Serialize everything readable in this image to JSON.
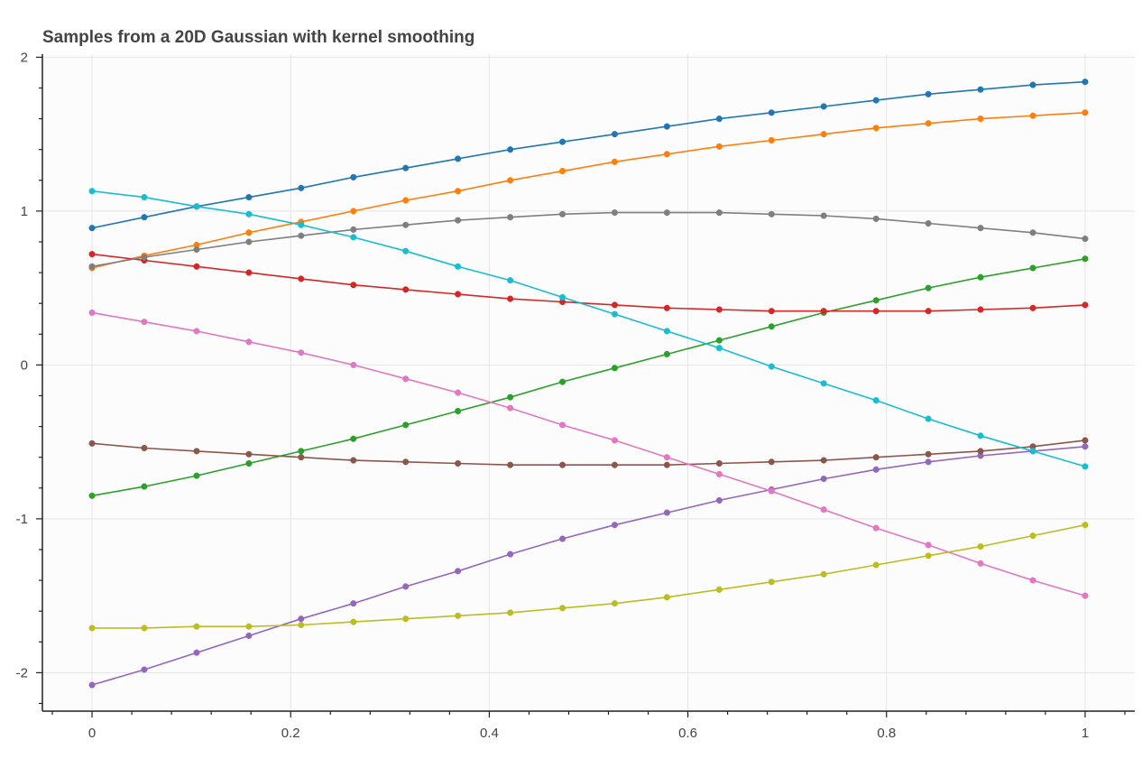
{
  "chart_data": {
    "type": "line",
    "title": "Samples from a 20D Gaussian with kernel smoothing",
    "xlabel": "",
    "ylabel": "",
    "xlim": [
      -0.05,
      1.05
    ],
    "ylim": [
      -2.25,
      2.02
    ],
    "xticks": [
      0,
      0.2,
      0.4,
      0.6,
      0.8,
      1
    ],
    "xtick_labels": [
      "0",
      "0.2",
      "0.4",
      "0.6",
      "0.8",
      "1"
    ],
    "yticks": [
      -2,
      -1,
      0,
      1,
      2
    ],
    "ytick_labels": [
      "-2",
      "-1",
      "0",
      "1",
      "2"
    ],
    "grid": true,
    "legend": "none",
    "x": [
      0,
      0.0526,
      0.1053,
      0.1579,
      0.2105,
      0.2632,
      0.3158,
      0.3684,
      0.4211,
      0.4737,
      0.5263,
      0.5789,
      0.6316,
      0.6842,
      0.7368,
      0.7895,
      0.8421,
      0.8947,
      0.9474,
      1.0
    ],
    "series": [
      {
        "color": "#1f77b4",
        "values": [
          0.89,
          0.96,
          1.03,
          1.09,
          1.15,
          1.22,
          1.28,
          1.34,
          1.4,
          1.45,
          1.5,
          1.55,
          1.6,
          1.64,
          1.68,
          1.72,
          1.76,
          1.79,
          1.82,
          1.84
        ]
      },
      {
        "color": "#ff7f0e",
        "values": [
          0.63,
          0.71,
          0.78,
          0.86,
          0.93,
          1.0,
          1.07,
          1.13,
          1.2,
          1.26,
          1.32,
          1.37,
          1.42,
          1.46,
          1.5,
          1.54,
          1.57,
          1.6,
          1.62,
          1.64
        ]
      },
      {
        "color": "#2ca02c",
        "values": [
          -0.85,
          -0.79,
          -0.72,
          -0.64,
          -0.56,
          -0.48,
          -0.39,
          -0.3,
          -0.21,
          -0.11,
          -0.02,
          0.07,
          0.16,
          0.25,
          0.34,
          0.42,
          0.5,
          0.57,
          0.63,
          0.69
        ]
      },
      {
        "color": "#d62728",
        "values": [
          0.72,
          0.68,
          0.64,
          0.6,
          0.56,
          0.52,
          0.49,
          0.46,
          0.43,
          0.41,
          0.39,
          0.37,
          0.36,
          0.35,
          0.35,
          0.35,
          0.35,
          0.36,
          0.37,
          0.39
        ]
      },
      {
        "color": "#9467bd",
        "values": [
          -2.08,
          -1.98,
          -1.87,
          -1.76,
          -1.65,
          -1.55,
          -1.44,
          -1.34,
          -1.23,
          -1.13,
          -1.04,
          -0.96,
          -0.88,
          -0.81,
          -0.74,
          -0.68,
          -0.63,
          -0.59,
          -0.56,
          -0.53
        ]
      },
      {
        "color": "#8c564b",
        "values": [
          -0.51,
          -0.54,
          -0.56,
          -0.58,
          -0.6,
          -0.62,
          -0.63,
          -0.64,
          -0.65,
          -0.65,
          -0.65,
          -0.65,
          -0.64,
          -0.63,
          -0.62,
          -0.6,
          -0.58,
          -0.56,
          -0.53,
          -0.49
        ]
      },
      {
        "color": "#e377c2",
        "values": [
          0.34,
          0.28,
          0.22,
          0.15,
          0.08,
          0.0,
          -0.09,
          -0.18,
          -0.28,
          -0.39,
          -0.49,
          -0.6,
          -0.71,
          -0.82,
          -0.94,
          -1.06,
          -1.17,
          -1.29,
          -1.4,
          -1.5
        ]
      },
      {
        "color": "#7f7f7f",
        "values": [
          0.64,
          0.7,
          0.75,
          0.8,
          0.84,
          0.88,
          0.91,
          0.94,
          0.96,
          0.98,
          0.99,
          0.99,
          0.99,
          0.98,
          0.97,
          0.95,
          0.92,
          0.89,
          0.86,
          0.82
        ]
      },
      {
        "color": "#bcbd22",
        "values": [
          -1.71,
          -1.71,
          -1.7,
          -1.7,
          -1.69,
          -1.67,
          -1.65,
          -1.63,
          -1.61,
          -1.58,
          -1.55,
          -1.51,
          -1.46,
          -1.41,
          -1.36,
          -1.3,
          -1.24,
          -1.18,
          -1.11,
          -1.04
        ]
      },
      {
        "color": "#17becf",
        "values": [
          1.13,
          1.09,
          1.03,
          0.98,
          0.91,
          0.83,
          0.74,
          0.64,
          0.55,
          0.44,
          0.33,
          0.22,
          0.11,
          -0.01,
          -0.12,
          -0.23,
          -0.35,
          -0.46,
          -0.56,
          -0.66
        ]
      }
    ]
  }
}
